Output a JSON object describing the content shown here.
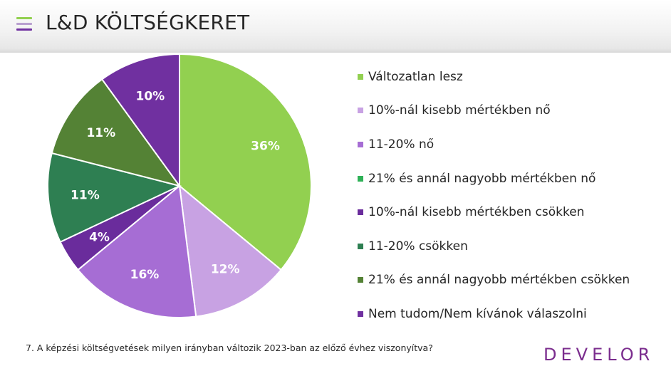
{
  "header": {
    "title": "L&D KÖLTSÉGKERET"
  },
  "chart_data": {
    "type": "pie",
    "slices": [
      {
        "label": "Változatlan lesz",
        "value": 36,
        "display": "36%",
        "color": "#92d050"
      },
      {
        "label": "10%-nál kisebb mértékben nő",
        "value": 12,
        "display": "12%",
        "color": "#c8a2e3"
      },
      {
        "label": "11-20% nő",
        "value": 16,
        "display": "16%",
        "color": "#a66dd4"
      },
      {
        "label": "21% és annál nagyobb mértékben nő",
        "value": 0,
        "display": "",
        "color": "#2fb157"
      },
      {
        "label": "10%-nál kisebb mértékben csökken",
        "value": 4,
        "display": "4%",
        "color": "#6a2c9c"
      },
      {
        "label": "11-20% csökken",
        "value": 11,
        "display": "11%",
        "color": "#2e7f52"
      },
      {
        "label": "21% és annál nagyobb mértékben csökken",
        "value": 11,
        "display": "11%",
        "color": "#548235"
      },
      {
        "label": "Nem tudom/Nem kívánok válaszolni",
        "value": 10,
        "display": "10%",
        "color": "#7030a0"
      }
    ],
    "start": "12 o'clock",
    "direction": "clockwise",
    "legend_position": "right"
  },
  "footnote": "7. A képzési költségvetések milyen irányban változik 2023-ban az előző évhez viszonyítva?",
  "logo_text": "DEVELOR",
  "colors": {
    "menu_icon": [
      "#92d050",
      "#a66dd4",
      "#7030a0"
    ],
    "logo": "#7b2d8e"
  }
}
